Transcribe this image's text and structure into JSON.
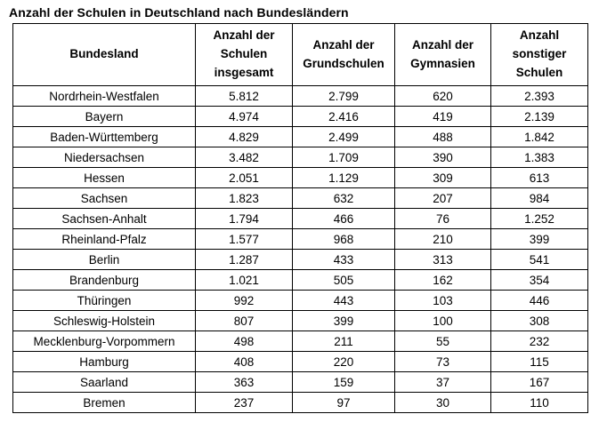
{
  "title": "Anzahl der Schulen in Deutschland nach Bundesländern",
  "chart_data": {
    "type": "table",
    "title": "Anzahl der Schulen in Deutschland nach Bundesländern",
    "columns": [
      "Bundesland",
      "Anzahl der Schulen insgesamt",
      "Anzahl der Grundschulen",
      "Anzahl der Gymnasien",
      "Anzahl sonstiger Schulen"
    ],
    "rows": [
      [
        "Nordrhein-Westfalen",
        "5.812",
        "2.799",
        "620",
        "2.393"
      ],
      [
        "Bayern",
        "4.974",
        "2.416",
        "419",
        "2.139"
      ],
      [
        "Baden-Württemberg",
        "4.829",
        "2.499",
        "488",
        "1.842"
      ],
      [
        "Niedersachsen",
        "3.482",
        "1.709",
        "390",
        "1.383"
      ],
      [
        "Hessen",
        "2.051",
        "1.129",
        "309",
        "613"
      ],
      [
        "Sachsen",
        "1.823",
        "632",
        "207",
        "984"
      ],
      [
        "Sachsen-Anhalt",
        "1.794",
        "466",
        "76",
        "1.252"
      ],
      [
        "Rheinland-Pfalz",
        "1.577",
        "968",
        "210",
        "399"
      ],
      [
        "Berlin",
        "1.287",
        "433",
        "313",
        "541"
      ],
      [
        "Brandenburg",
        "1.021",
        "505",
        "162",
        "354"
      ],
      [
        "Thüringen",
        "992",
        "443",
        "103",
        "446"
      ],
      [
        "Schleswig-Holstein",
        "807",
        "399",
        "100",
        "308"
      ],
      [
        "Mecklenburg-Vorpommern",
        "498",
        "211",
        "55",
        "232"
      ],
      [
        "Hamburg",
        "408",
        "220",
        "73",
        "115"
      ],
      [
        "Saarland",
        "363",
        "159",
        "37",
        "167"
      ],
      [
        "Bremen",
        "237",
        "97",
        "30",
        "110"
      ]
    ]
  }
}
